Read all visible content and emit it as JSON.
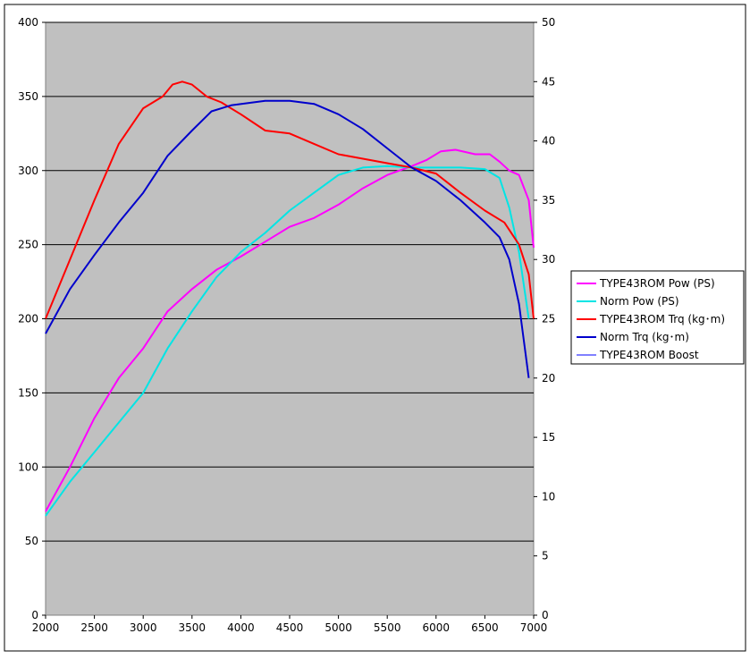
{
  "chart_data": {
    "type": "line",
    "title": "",
    "xlabel": "",
    "ylabel": "",
    "y2label": "",
    "xlim": [
      2000,
      7000
    ],
    "ylim": [
      0,
      400
    ],
    "y2lim": [
      0,
      50
    ],
    "x_ticks": [
      2000,
      2500,
      3000,
      3500,
      4000,
      4500,
      5000,
      5500,
      6000,
      6500,
      7000
    ],
    "y_ticks": [
      0,
      50,
      100,
      150,
      200,
      250,
      300,
      350,
      400
    ],
    "y2_ticks": [
      0,
      5,
      10,
      15,
      20,
      25,
      30,
      35,
      40,
      45,
      50
    ],
    "grid": "horizontal",
    "plot_background": "#c0c0c0",
    "legend_position": "right",
    "series": [
      {
        "name": "TYPE43ROM Pow (PS)",
        "color": "#ff00ff",
        "axis": "left",
        "points": [
          [
            2000,
            70
          ],
          [
            2250,
            100
          ],
          [
            2500,
            133
          ],
          [
            2750,
            160
          ],
          [
            3000,
            180
          ],
          [
            3250,
            205
          ],
          [
            3500,
            220
          ],
          [
            3750,
            233
          ],
          [
            4000,
            242
          ],
          [
            4250,
            252
          ],
          [
            4500,
            262
          ],
          [
            4750,
            268
          ],
          [
            5000,
            277
          ],
          [
            5250,
            288
          ],
          [
            5500,
            297
          ],
          [
            5750,
            303
          ],
          [
            5900,
            307
          ],
          [
            6050,
            313
          ],
          [
            6200,
            314
          ],
          [
            6400,
            311
          ],
          [
            6550,
            311
          ],
          [
            6650,
            306
          ],
          [
            6750,
            300
          ],
          [
            6850,
            297
          ],
          [
            6950,
            280
          ],
          [
            7000,
            248
          ]
        ]
      },
      {
        "name": "Norm Pow (PS)",
        "color": "#00e5e5",
        "axis": "left",
        "points": [
          [
            2000,
            67
          ],
          [
            2250,
            90
          ],
          [
            2500,
            110
          ],
          [
            2750,
            130
          ],
          [
            3000,
            150
          ],
          [
            3250,
            180
          ],
          [
            3500,
            205
          ],
          [
            3750,
            228
          ],
          [
            4000,
            245
          ],
          [
            4250,
            258
          ],
          [
            4500,
            273
          ],
          [
            4750,
            285
          ],
          [
            5000,
            297
          ],
          [
            5250,
            302
          ],
          [
            5500,
            303
          ],
          [
            5750,
            302
          ],
          [
            6000,
            302
          ],
          [
            6250,
            302
          ],
          [
            6500,
            301
          ],
          [
            6650,
            295
          ],
          [
            6750,
            275
          ],
          [
            6850,
            245
          ],
          [
            6950,
            200
          ]
        ]
      },
      {
        "name": "TYPE43ROM Trq (kg･m)",
        "color": "#ff0000",
        "axis": "left",
        "points": [
          [
            2000,
            200
          ],
          [
            2250,
            240
          ],
          [
            2500,
            280
          ],
          [
            2750,
            318
          ],
          [
            3000,
            342
          ],
          [
            3200,
            350
          ],
          [
            3300,
            358
          ],
          [
            3400,
            360
          ],
          [
            3500,
            358
          ],
          [
            3650,
            350
          ],
          [
            3800,
            346
          ],
          [
            4000,
            338
          ],
          [
            4250,
            327
          ],
          [
            4500,
            325
          ],
          [
            4750,
            318
          ],
          [
            5000,
            311
          ],
          [
            5250,
            308
          ],
          [
            5500,
            305
          ],
          [
            5750,
            302
          ],
          [
            6000,
            298
          ],
          [
            6250,
            285
          ],
          [
            6500,
            273
          ],
          [
            6700,
            265
          ],
          [
            6850,
            250
          ],
          [
            6950,
            230
          ],
          [
            7000,
            200
          ]
        ]
      },
      {
        "name": "Norm Trq (kg･m)",
        "color": "#0000cc",
        "axis": "left",
        "points": [
          [
            2000,
            190
          ],
          [
            2250,
            220
          ],
          [
            2500,
            243
          ],
          [
            2750,
            265
          ],
          [
            3000,
            285
          ],
          [
            3250,
            310
          ],
          [
            3500,
            327
          ],
          [
            3700,
            340
          ],
          [
            3900,
            344
          ],
          [
            4250,
            347
          ],
          [
            4500,
            347
          ],
          [
            4750,
            345
          ],
          [
            5000,
            338
          ],
          [
            5250,
            328
          ],
          [
            5500,
            315
          ],
          [
            5750,
            302
          ],
          [
            6000,
            293
          ],
          [
            6250,
            280
          ],
          [
            6500,
            265
          ],
          [
            6650,
            255
          ],
          [
            6750,
            240
          ],
          [
            6850,
            210
          ],
          [
            6950,
            160
          ]
        ]
      },
      {
        "name": "TYPE43ROM Boost",
        "color": "#0000ff",
        "axis": "right",
        "points": []
      }
    ]
  }
}
